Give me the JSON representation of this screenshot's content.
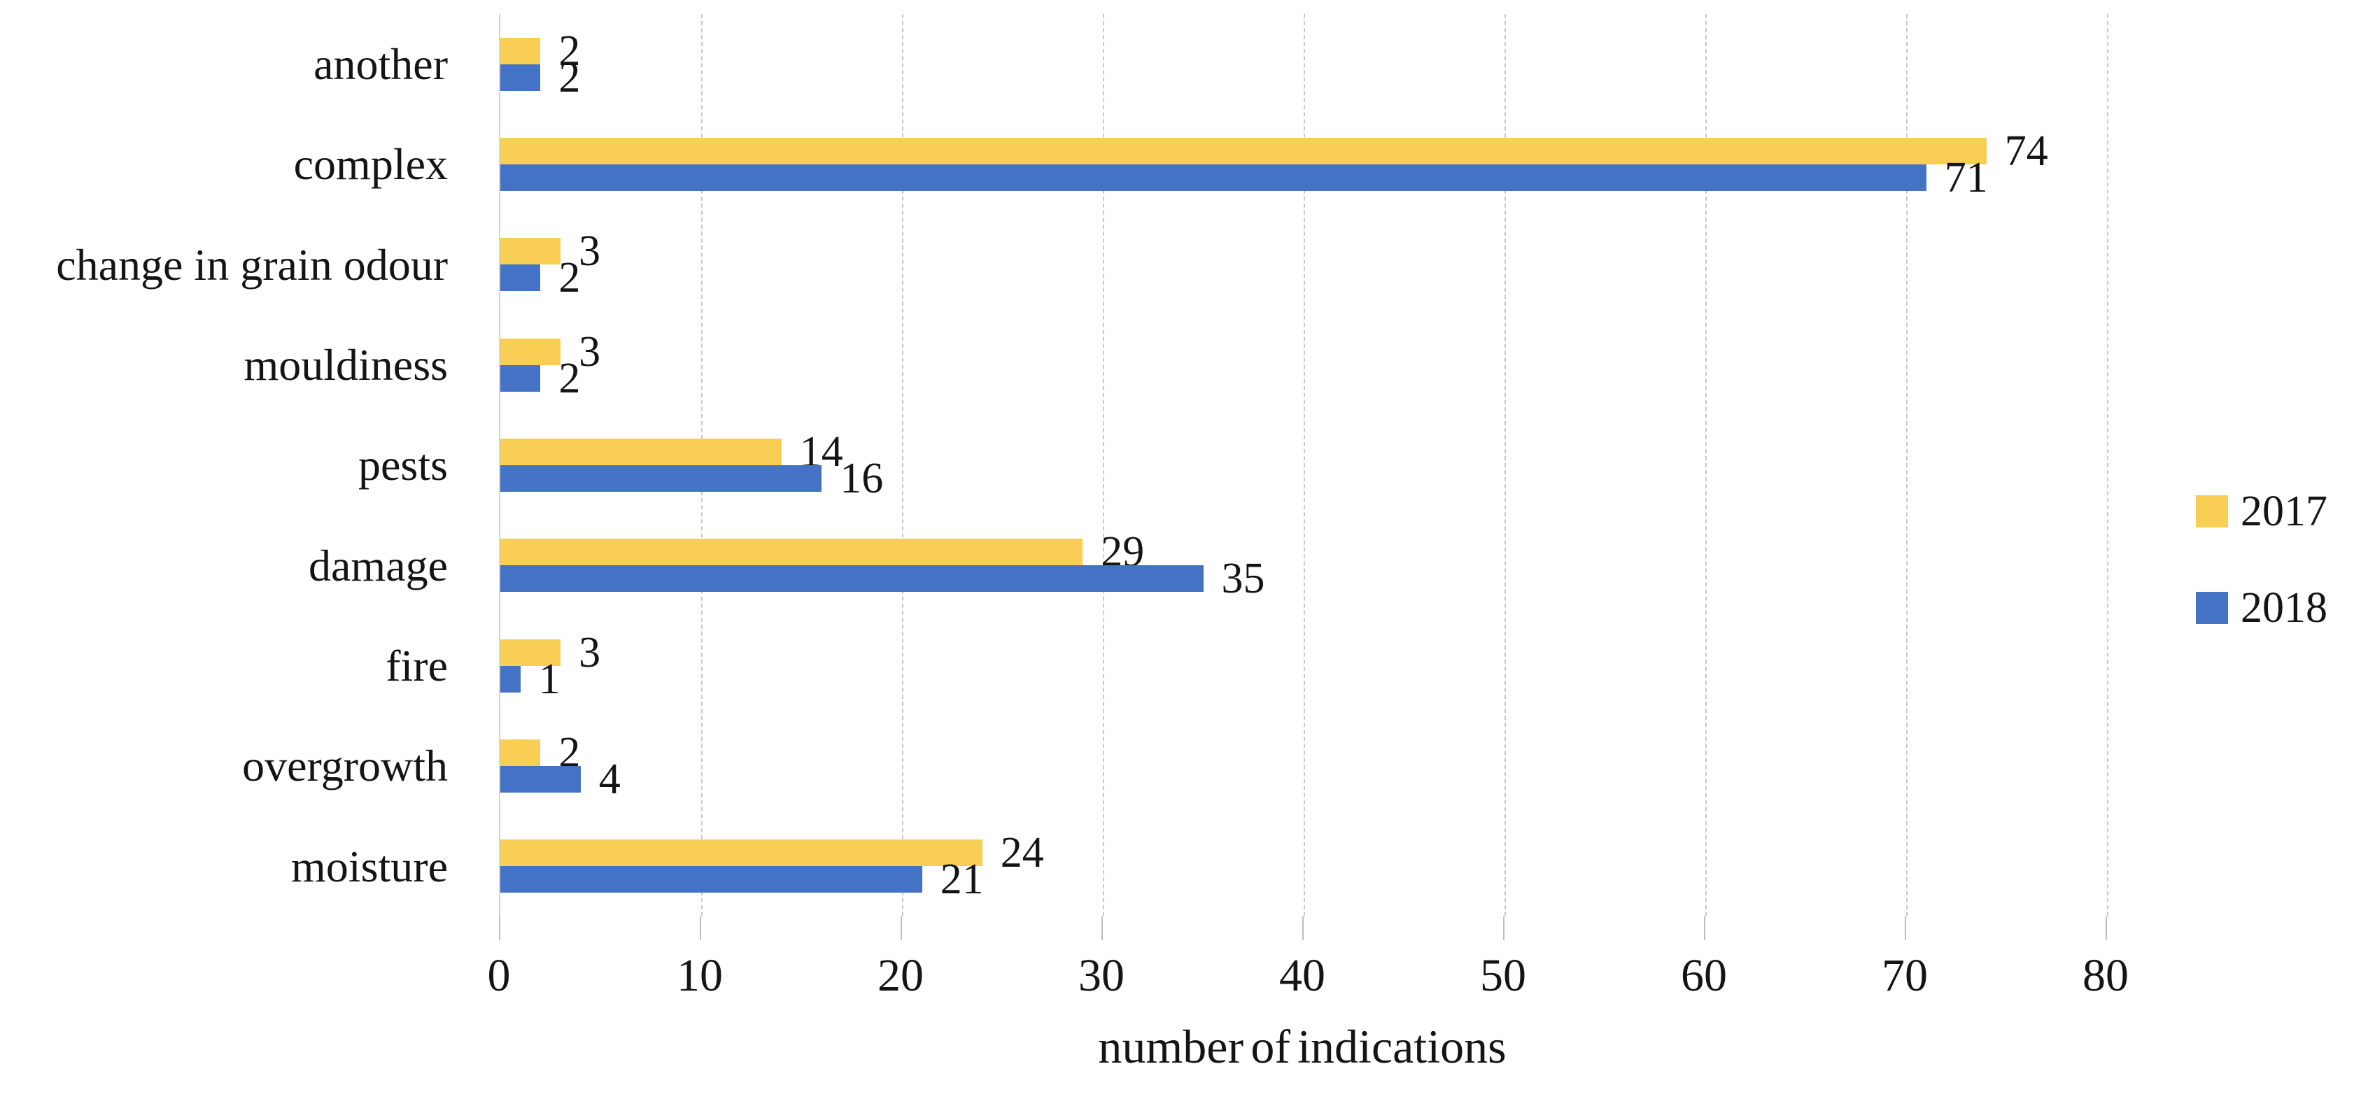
{
  "chart_data": {
    "type": "bar",
    "orientation": "horizontal",
    "title": "",
    "xlabel": "number of indications",
    "categories": [
      "another",
      "complex",
      "change in grain odour",
      "mouldiness",
      "pests",
      "damage",
      "fire",
      "overgrowth",
      "moisture"
    ],
    "series": [
      {
        "name": "2017",
        "color": "#F8CE55",
        "values": [
          2,
          74,
          3,
          3,
          14,
          29,
          3,
          2,
          24
        ]
      },
      {
        "name": "2018",
        "color": "#4472C4",
        "values": [
          2,
          71,
          2,
          2,
          16,
          35,
          1,
          4,
          21
        ]
      }
    ],
    "x_ticks": [
      0,
      10,
      20,
      30,
      40,
      50,
      60,
      70,
      80
    ],
    "xlim": [
      0,
      81.2
    ],
    "grid": true,
    "gridline_style": "dashed",
    "legend_position": "right-middle",
    "data_labels": true
  },
  "colors": {
    "background": "#ffffff",
    "gridline": "#c9c9c9",
    "axis_line": "#d4d4d4",
    "tick": "#bdbdbd",
    "text": "#141414",
    "series_2017": "#F8CE55",
    "series_2018": "#4472C4"
  }
}
